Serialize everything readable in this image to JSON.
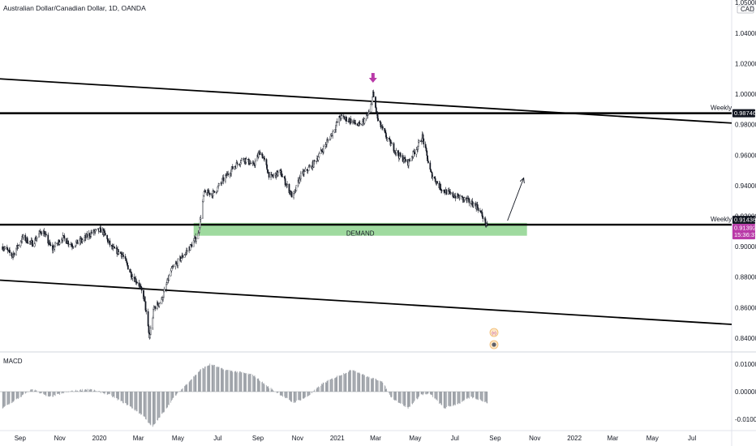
{
  "header": {
    "title": "Australian Dollar/Canadian Dollar, 1D, OANDA"
  },
  "chart_data": [
    {
      "type": "candlestick",
      "title": "Australian Dollar/Canadian Dollar, 1D, OANDA",
      "currency": "CAD",
      "ylim": [
        0.832,
        1.05
      ],
      "y_ticks": [
        "1.04000",
        "1.02000",
        "1.00000",
        "0.98000",
        "0.96000",
        "0.94000",
        "0.92000",
        "0.90000",
        "0.88000",
        "0.86000",
        "0.84000"
      ],
      "y_tick_values": [
        1.04,
        1.02,
        1.0,
        0.98,
        0.96,
        0.94,
        0.92,
        0.9,
        0.88,
        0.86,
        0.84
      ],
      "top_tick_label": "1.05000",
      "x_ticks": [
        "Sep",
        "Nov",
        "2020",
        "Mar",
        "May",
        "Jul",
        "Sep",
        "Nov",
        "2021",
        "Mar",
        "May",
        "Jul",
        "Sep",
        "Nov",
        "2022",
        "Mar",
        "May",
        "Jul"
      ],
      "x_tick_dates": [
        "2019-09-01",
        "2019-11-01",
        "2020-01-01",
        "2020-03-01",
        "2020-05-01",
        "2020-07-01",
        "2020-09-01",
        "2020-11-01",
        "2021-01-01",
        "2021-03-01",
        "2021-05-01",
        "2021-07-01",
        "2021-09-01",
        "2021-11-01",
        "2022-01-01",
        "2022-03-01",
        "2022-05-01",
        "2022-07-01"
      ],
      "price_path": [
        [
          "2019-08-05",
          0.9
        ],
        [
          "2019-08-20",
          0.894
        ],
        [
          "2019-09-05",
          0.906
        ],
        [
          "2019-09-20",
          0.902
        ],
        [
          "2019-10-05",
          0.911
        ],
        [
          "2019-10-20",
          0.898
        ],
        [
          "2019-11-05",
          0.906
        ],
        [
          "2019-11-20",
          0.901
        ],
        [
          "2019-12-05",
          0.904
        ],
        [
          "2019-12-20",
          0.909
        ],
        [
          "2020-01-05",
          0.911
        ],
        [
          "2020-01-20",
          0.899
        ],
        [
          "2020-02-05",
          0.895
        ],
        [
          "2020-02-20",
          0.881
        ],
        [
          "2020-03-01",
          0.876
        ],
        [
          "2020-03-10",
          0.866
        ],
        [
          "2020-03-18",
          0.84
        ],
        [
          "2020-03-25",
          0.86
        ],
        [
          "2020-04-05",
          0.864
        ],
        [
          "2020-04-20",
          0.884
        ],
        [
          "2020-05-05",
          0.892
        ],
        [
          "2020-05-20",
          0.9
        ],
        [
          "2020-06-01",
          0.908
        ],
        [
          "2020-06-10",
          0.935
        ],
        [
          "2020-06-25",
          0.935
        ],
        [
          "2020-07-10",
          0.944
        ],
        [
          "2020-07-25",
          0.952
        ],
        [
          "2020-08-10",
          0.958
        ],
        [
          "2020-08-25",
          0.953
        ],
        [
          "2020-09-05",
          0.963
        ],
        [
          "2020-09-20",
          0.945
        ],
        [
          "2020-10-05",
          0.949
        ],
        [
          "2020-10-25",
          0.932
        ],
        [
          "2020-11-05",
          0.946
        ],
        [
          "2020-11-25",
          0.954
        ],
        [
          "2020-12-10",
          0.964
        ],
        [
          "2020-12-25",
          0.975
        ],
        [
          "2021-01-05",
          0.985
        ],
        [
          "2021-01-20",
          0.983
        ],
        [
          "2021-02-05",
          0.979
        ],
        [
          "2021-02-20",
          0.988
        ],
        [
          "2021-02-25",
          1.0
        ],
        [
          "2021-03-05",
          0.982
        ],
        [
          "2021-03-20",
          0.97
        ],
        [
          "2021-04-05",
          0.96
        ],
        [
          "2021-04-20",
          0.955
        ],
        [
          "2021-05-05",
          0.966
        ],
        [
          "2021-05-12",
          0.972
        ],
        [
          "2021-05-25",
          0.948
        ],
        [
          "2021-06-10",
          0.938
        ],
        [
          "2021-06-25",
          0.934
        ],
        [
          "2021-07-10",
          0.932
        ],
        [
          "2021-07-25",
          0.929
        ],
        [
          "2021-08-05",
          0.926
        ],
        [
          "2021-08-15",
          0.918
        ],
        [
          "2021-08-20",
          0.912
        ]
      ],
      "macd": {
        "label": "MACD",
        "ylim": [
          -0.0135,
          0.0135
        ],
        "y_ticks": [
          "0.01000",
          "0.00000",
          "-0.01000"
        ],
        "y_tick_values": [
          0.01,
          0.0,
          -0.01
        ],
        "path": [
          [
            "2019-08-05",
            -0.006
          ],
          [
            "2019-09-01",
            -0.002
          ],
          [
            "2019-09-20",
            0.001
          ],
          [
            "2019-10-15",
            -0.002
          ],
          [
            "2019-11-15",
            0.0
          ],
          [
            "2019-12-15",
            0.001
          ],
          [
            "2020-01-15",
            -0.001
          ],
          [
            "2020-02-15",
            -0.005
          ],
          [
            "2020-03-10",
            -0.009
          ],
          [
            "2020-03-22",
            -0.013
          ],
          [
            "2020-04-10",
            -0.007
          ],
          [
            "2020-04-25",
            -0.002
          ],
          [
            "2020-05-15",
            0.003
          ],
          [
            "2020-06-05",
            0.008
          ],
          [
            "2020-06-20",
            0.01
          ],
          [
            "2020-07-10",
            0.008
          ],
          [
            "2020-08-05",
            0.007
          ],
          [
            "2020-08-25",
            0.006
          ],
          [
            "2020-09-15",
            0.002
          ],
          [
            "2020-10-05",
            -0.001
          ],
          [
            "2020-10-25",
            -0.004
          ],
          [
            "2020-11-15",
            -0.002
          ],
          [
            "2020-12-10",
            0.003
          ],
          [
            "2021-01-05",
            0.006
          ],
          [
            "2021-01-25",
            0.008
          ],
          [
            "2021-02-20",
            0.005
          ],
          [
            "2021-03-10",
            0.004
          ],
          [
            "2021-03-25",
            -0.002
          ],
          [
            "2021-04-20",
            -0.006
          ],
          [
            "2021-05-10",
            -0.001
          ],
          [
            "2021-05-25",
            -0.001
          ],
          [
            "2021-06-15",
            -0.006
          ],
          [
            "2021-07-10",
            -0.004
          ],
          [
            "2021-07-25",
            -0.002
          ],
          [
            "2021-08-10",
            -0.003
          ],
          [
            "2021-08-20",
            -0.004
          ]
        ]
      }
    }
  ],
  "price_labels": {
    "weekly_upper": {
      "text": "Weekly",
      "value_label": "0.98746",
      "value": 0.98746
    },
    "weekly_lower": {
      "text": "Weekly",
      "value_label": "0.91436",
      "value": 0.91436
    },
    "current": {
      "value_label": "0.91392",
      "countdown": "15:36:37"
    }
  },
  "drawings": {
    "demand_zone": {
      "label": "DEMAND",
      "top": 0.9145,
      "bottom": 0.9082,
      "start": "2020-05-25",
      "end": "2021-10-20",
      "color": "#8ed48e"
    },
    "marker_arrow_color": "#b93aa8",
    "trend_lines": [
      {
        "p1": [
          "2019-08-01",
          1.01
        ],
        "p2": [
          "2022-08-31",
          0.981
        ]
      },
      {
        "p1": [
          "2019-08-01",
          0.878
        ],
        "p2": [
          "2022-08-31",
          0.849
        ]
      }
    ],
    "forecast_arrow": {
      "from": [
        "2021-09-20",
        0.917
      ],
      "to": [
        "2021-10-15",
        0.945
      ]
    }
  },
  "colors": {
    "candles": "#131722",
    "macd_bars": "#9aa0a6",
    "label_dark": "#131722",
    "label_magenta": "#b93aa8"
  }
}
